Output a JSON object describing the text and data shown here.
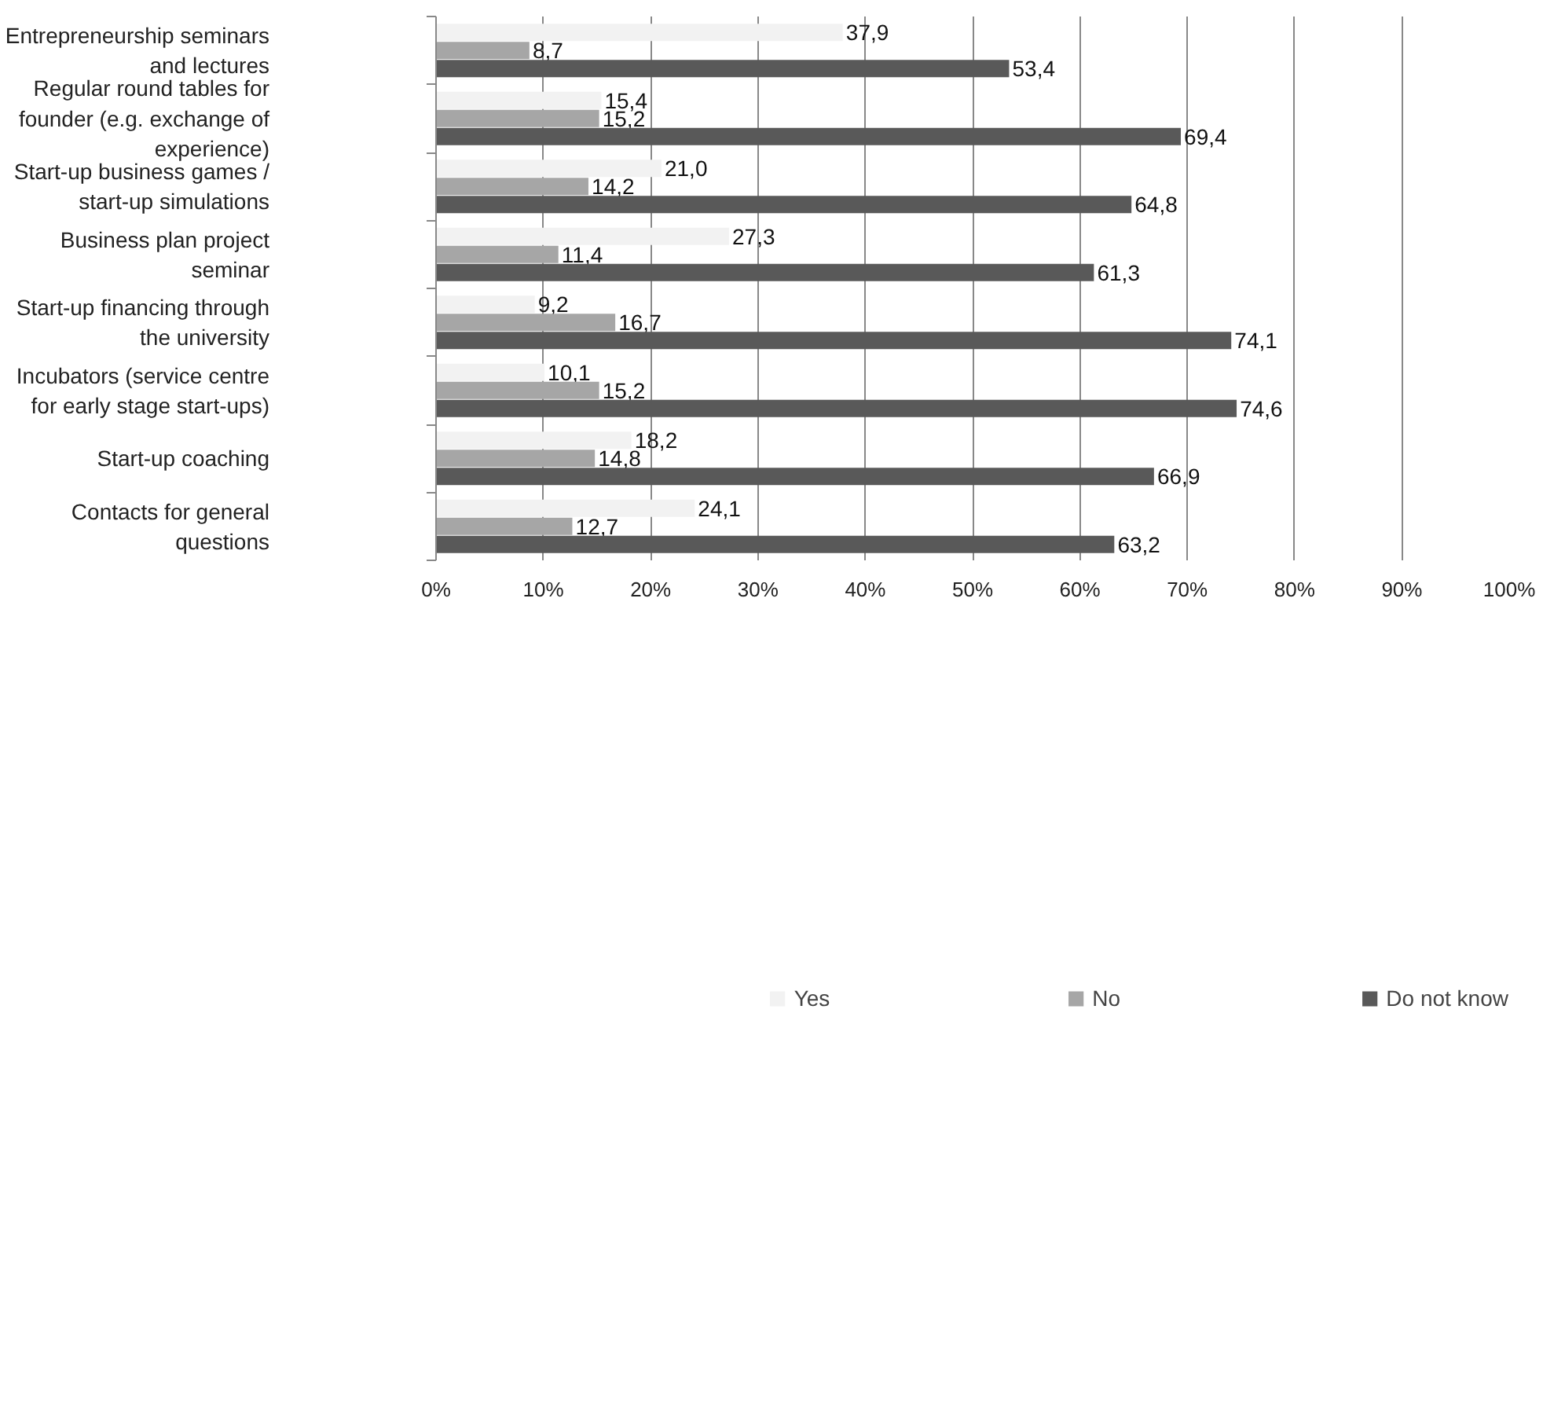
{
  "chart_data": {
    "type": "bar",
    "orientation": "horizontal",
    "categories": [
      "Entrepreneurship seminars and lectures",
      "Regular round tables for founder (e.g. exchange of experience)",
      "Start-up business games / start-up simulations",
      "Business plan project seminar",
      "Start-up financing through the university",
      "Incubators (service centre for early stage start-ups)",
      "Start-up coaching",
      "Contacts for general questions"
    ],
    "series": [
      {
        "name": "Yes",
        "color": "#f2f2f2",
        "values": [
          37.9,
          15.4,
          21.0,
          27.3,
          9.2,
          10.1,
          18.2,
          24.1
        ],
        "value_labels": [
          "37,9",
          "15,4",
          "21,0",
          "27,3",
          "9,2",
          "10,1",
          "18,2",
          "24,1"
        ]
      },
      {
        "name": "No",
        "color": "#a6a6a6",
        "values": [
          8.7,
          15.2,
          14.2,
          11.4,
          16.7,
          15.2,
          14.8,
          12.7
        ],
        "value_labels": [
          "8,7",
          "15,2",
          "14,2",
          "11,4",
          "16,7",
          "15,2",
          "14,8",
          "12,7"
        ]
      },
      {
        "name": "Do not know",
        "color": "#595959",
        "values": [
          53.4,
          69.4,
          64.8,
          61.3,
          74.1,
          74.6,
          66.9,
          63.2
        ],
        "value_labels": [
          "53,4",
          "69,4",
          "64,8",
          "61,3",
          "74,1",
          "74,6",
          "66,9",
          "63,2"
        ]
      }
    ],
    "xlim": [
      0,
      100
    ],
    "xticks": [
      {
        "value": 0,
        "label": "0%"
      },
      {
        "value": 10,
        "label": "10%"
      },
      {
        "value": 20,
        "label": "20%"
      },
      {
        "value": 30,
        "label": "30%"
      },
      {
        "value": 40,
        "label": "40%"
      },
      {
        "value": 50,
        "label": "50%"
      },
      {
        "value": 60,
        "label": "60%"
      },
      {
        "value": 70,
        "label": "70%"
      },
      {
        "value": 80,
        "label": "80%"
      },
      {
        "value": 90,
        "label": "90%"
      },
      {
        "value": 100,
        "label": "100%"
      }
    ],
    "grid": "x",
    "legend": "bottom"
  }
}
